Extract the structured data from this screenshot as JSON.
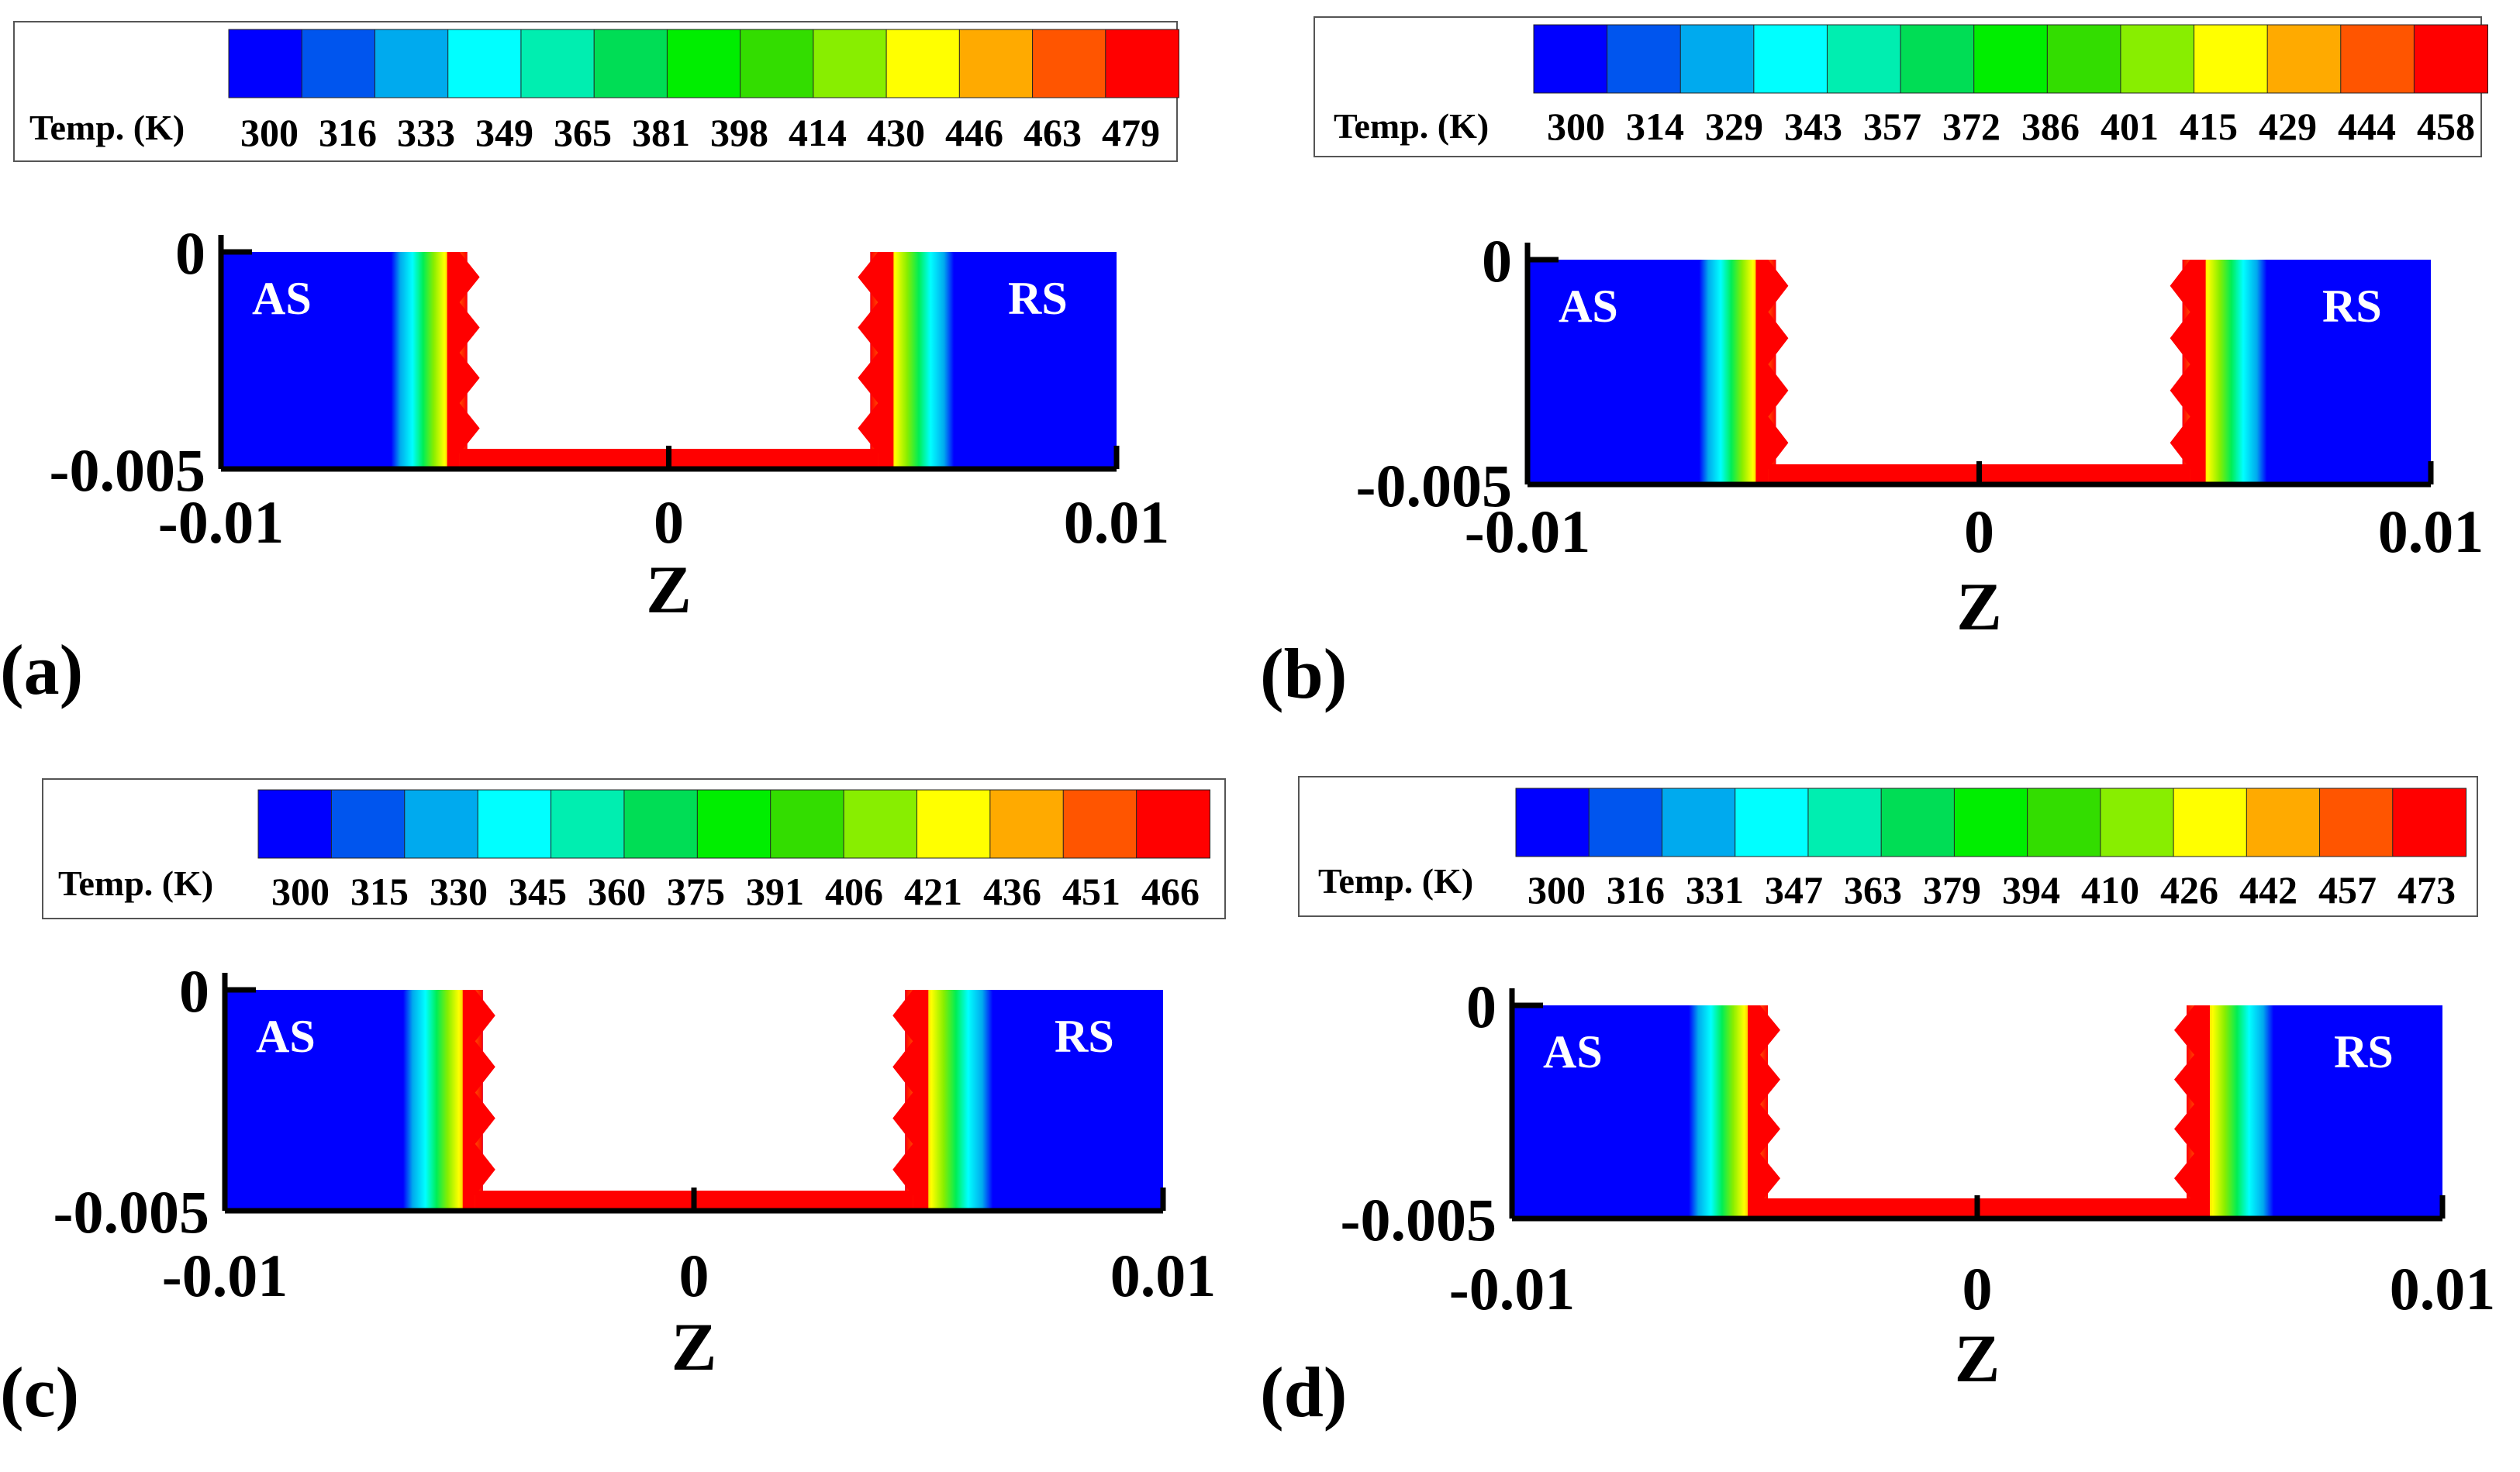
{
  "figure": {
    "colorbar_title": "Temp. (K)",
    "x_axis_label": "Z",
    "region_labels": {
      "left": "AS",
      "right": "RS"
    },
    "label_colors": {
      "region_text": "#ffffff",
      "axis_text": "#000000"
    },
    "palette": [
      "#0000FF",
      "#0055EE",
      "#00AAEE",
      "#00FFFF",
      "#00EEB0",
      "#00DD55",
      "#00EE00",
      "#33DD00",
      "#88EE00",
      "#FFFF00",
      "#FFAA00",
      "#FF5500",
      "#FF0000"
    ]
  },
  "chart_data": [
    {
      "type": "heatmap",
      "panel_label": "(a)",
      "colorbar_ticks": [
        "300",
        "316",
        "333",
        "349",
        "365",
        "381",
        "398",
        "414",
        "430",
        "446",
        "463",
        "479"
      ],
      "temperature_range_K": [
        300,
        479
      ],
      "xlim": [
        -0.01,
        0.01
      ],
      "ylim": [
        -0.005,
        0
      ],
      "x_ticks": [
        "-0.01",
        "0",
        "0.01"
      ],
      "y_ticks": [
        "0",
        "-0.005"
      ]
    },
    {
      "type": "heatmap",
      "panel_label": "(b)",
      "colorbar_ticks": [
        "300",
        "314",
        "329",
        "343",
        "357",
        "372",
        "386",
        "401",
        "415",
        "429",
        "444",
        "458"
      ],
      "temperature_range_K": [
        300,
        458
      ],
      "xlim": [
        -0.01,
        0.01
      ],
      "ylim": [
        -0.005,
        0
      ],
      "x_ticks": [
        "-0.01",
        "0",
        "0.01"
      ],
      "y_ticks": [
        "0",
        "-0.005"
      ]
    },
    {
      "type": "heatmap",
      "panel_label": "(c)",
      "colorbar_ticks": [
        "300",
        "315",
        "330",
        "345",
        "360",
        "375",
        "391",
        "406",
        "421",
        "436",
        "451",
        "466"
      ],
      "temperature_range_K": [
        300,
        466
      ],
      "xlim": [
        -0.01,
        0.01
      ],
      "ylim": [
        -0.005,
        0
      ],
      "x_ticks": [
        "-0.01",
        "0",
        "0.01"
      ],
      "y_ticks": [
        "0",
        "-0.005"
      ]
    },
    {
      "type": "heatmap",
      "panel_label": "(d)",
      "colorbar_ticks": [
        "300",
        "316",
        "331",
        "347",
        "363",
        "379",
        "394",
        "410",
        "426",
        "442",
        "457",
        "473"
      ],
      "temperature_range_K": [
        300,
        473
      ],
      "xlim": [
        -0.01,
        0.01
      ],
      "ylim": [
        -0.005,
        0
      ],
      "x_ticks": [
        "-0.01",
        "0",
        "0.01"
      ],
      "y_ticks": [
        "0",
        "-0.005"
      ]
    }
  ]
}
